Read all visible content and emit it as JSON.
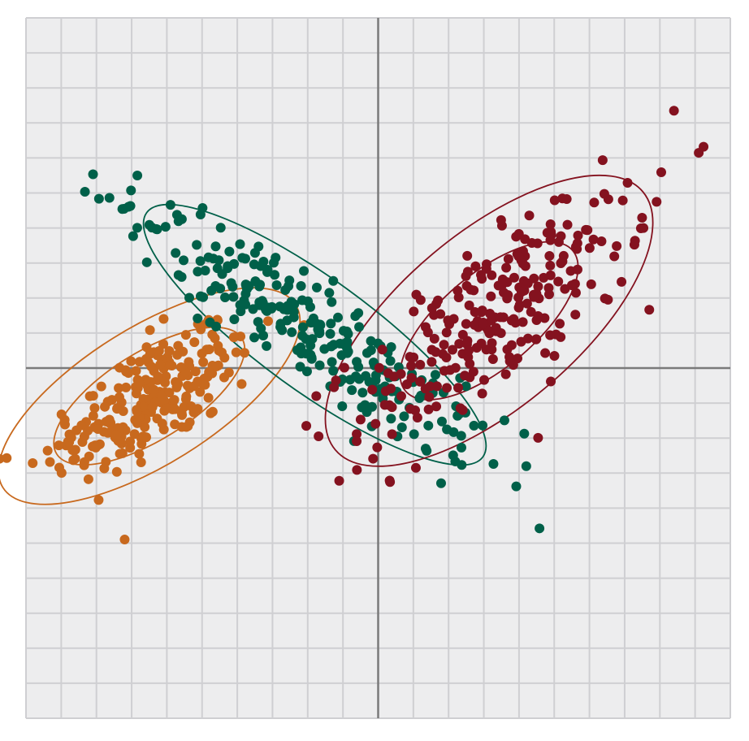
{
  "chart_data": {
    "type": "scatter",
    "title": "",
    "xlabel": "",
    "ylabel": "",
    "xlim": [
      -10,
      10
    ],
    "ylim": [
      -10,
      10
    ],
    "grid": true,
    "grid_step": 1,
    "axes_through_origin": true,
    "tick_labels": false,
    "legend": "none",
    "colors": {
      "background": "#ededee",
      "grid": "#cfcfd2",
      "axis": "#7a7a7a"
    },
    "series": [
      {
        "color": "#c8691e",
        "n_points": 240,
        "mean": [
          -6.5,
          -0.9
        ],
        "std_major": 1.75,
        "std_minor": 0.72,
        "angle_deg": 32,
        "ellipses": [
          {
            "cx": -6.5,
            "cy": -0.8,
            "rx": 3.1,
            "ry": 1.25,
            "angle_deg": 32
          },
          {
            "cx": -6.5,
            "cy": -0.8,
            "rx": 4.9,
            "ry": 1.95,
            "angle_deg": 32
          }
        ]
      },
      {
        "color": "#006049",
        "n_points": 260,
        "mean": [
          -1.9,
          1.0
        ],
        "std_major": 3.05,
        "std_minor": 0.62,
        "angle_deg": -36,
        "ellipses": [
          {
            "cx": -1.8,
            "cy": 0.95,
            "rx": 5.9,
            "ry": 1.6,
            "angle_deg": -36
          }
        ]
      },
      {
        "color": "#84121f",
        "n_points": 260,
        "mean": [
          3.3,
          1.5
        ],
        "std_major": 2.55,
        "std_minor": 0.9,
        "angle_deg": 40,
        "ellipses": [
          {
            "cx": 3.15,
            "cy": 1.35,
            "rx": 3.1,
            "ry": 1.35,
            "angle_deg": 40
          },
          {
            "cx": 3.15,
            "cy": 1.35,
            "rx": 5.7,
            "ry": 2.5,
            "angle_deg": 40
          }
        ]
      }
    ]
  }
}
